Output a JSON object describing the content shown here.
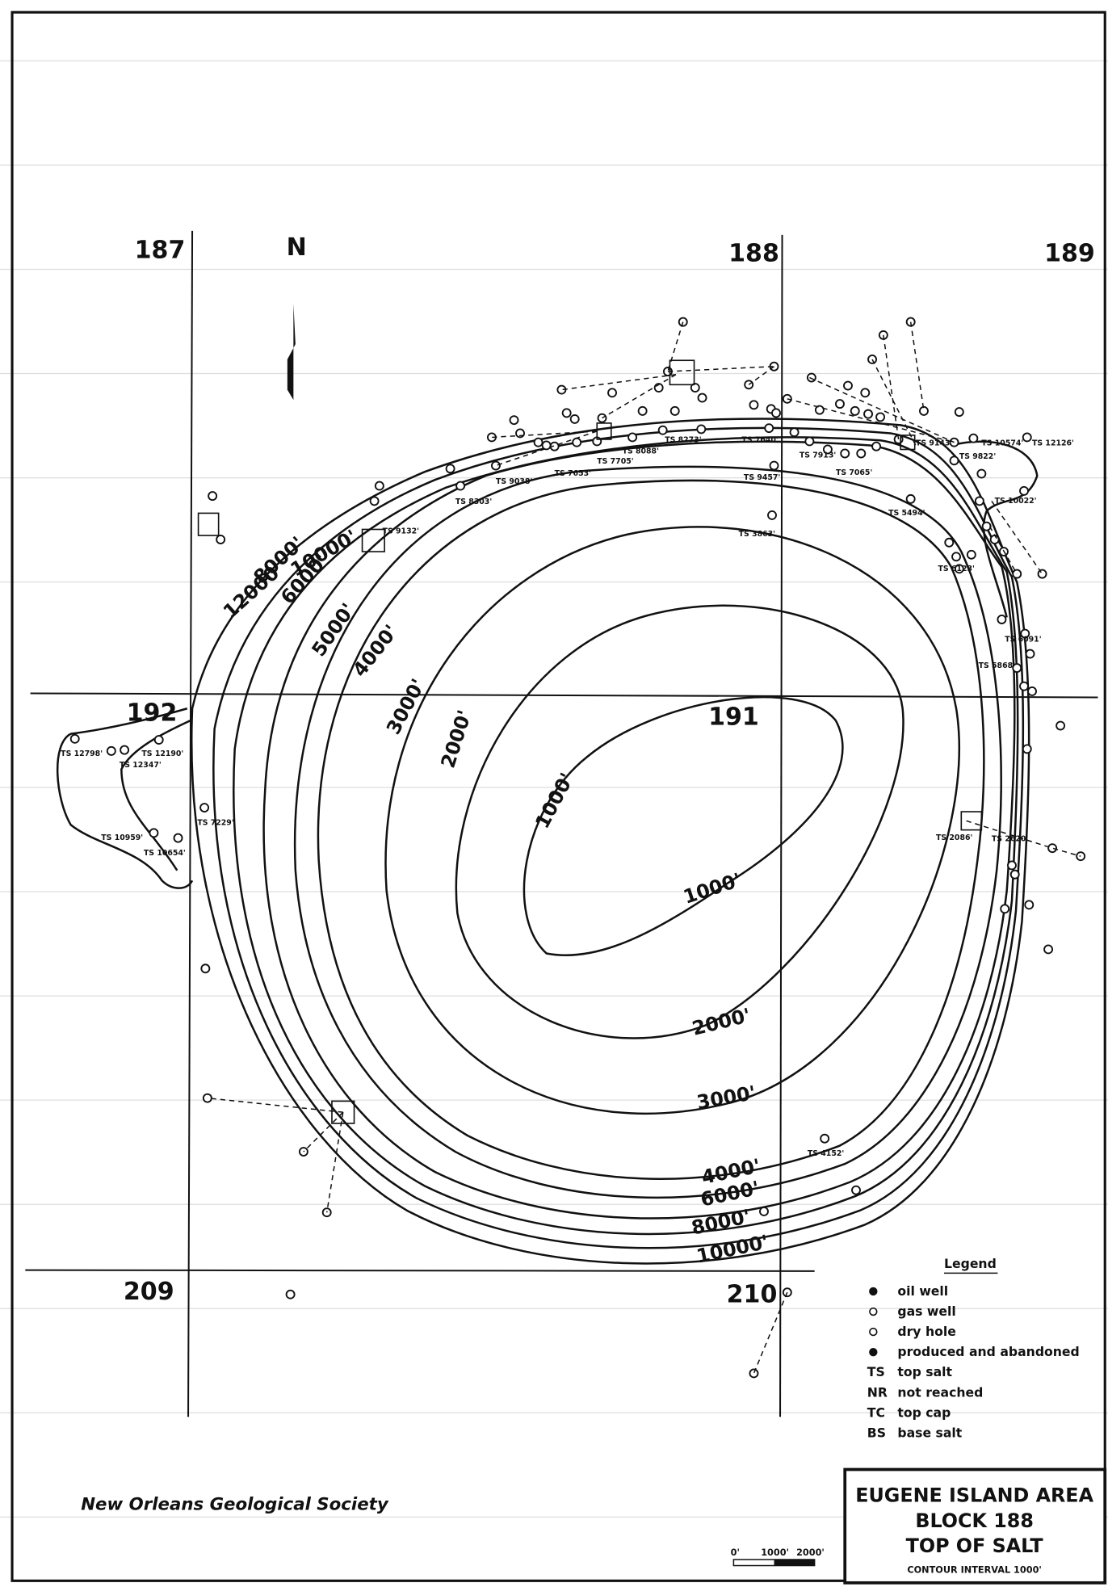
{
  "map": {
    "blocks": [
      "187",
      "188",
      "189",
      "192",
      "191",
      "209",
      "210"
    ],
    "north": "N",
    "contour_labels": [
      "1000'",
      "1000'",
      "2000'",
      "2000'",
      "3000'",
      "3000'",
      "4000'",
      "4000'",
      "5000'",
      "6000'",
      "6000'",
      "8000'",
      "8000'",
      "10000'",
      "10000'",
      "12000'"
    ],
    "well_labels": [
      "TS 10574'",
      "TS 12126'",
      "TS 9822'",
      "TS 10022'",
      "TS 9143'",
      "TS 7065'",
      "TS 7913'",
      "TS 7640'",
      "TS 8273'",
      "TS 8088'",
      "TS 7705'",
      "TS 7653'",
      "TS 9038'",
      "TS 8303'",
      "TS 9457'",
      "TS 3863'",
      "TS 9132'",
      "TS 5494'",
      "TS 6123'",
      "TS 6091'",
      "TS 5868'",
      "TS 12798'",
      "TS 12190'",
      "TS 12347'",
      "TS 10959'",
      "TS 10654'",
      "TS 7229'",
      "TS 2086'",
      "TS 2620'",
      "TS 4152'"
    ],
    "legend": {
      "title": "Legend",
      "symbols": [
        "oil well",
        "gas well",
        "dry hole",
        "produced and abandoned"
      ],
      "abbreviations": [
        {
          "code": "TS",
          "meaning": "top salt"
        },
        {
          "code": "NR",
          "meaning": "not reached"
        },
        {
          "code": "TC",
          "meaning": "top cap"
        },
        {
          "code": "BS",
          "meaning": "base salt"
        }
      ]
    },
    "title_block": {
      "lines": [
        "EUGENE ISLAND AREA",
        "BLOCK 188",
        "TOP OF SALT"
      ],
      "note": "CONTOUR INTERVAL 1000'"
    },
    "publisher": "New Orleans Geological Society",
    "scale": {
      "labels": [
        "0'",
        "1000'",
        "2000'"
      ]
    }
  }
}
